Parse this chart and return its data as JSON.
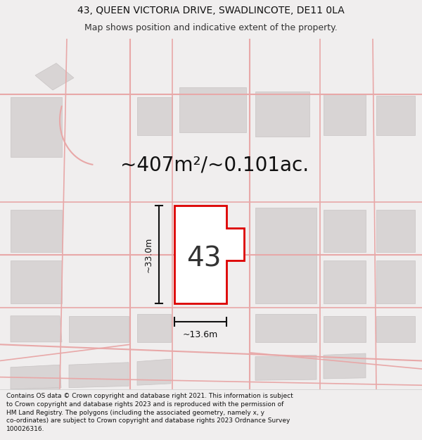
{
  "title_line1": "43, QUEEN VICTORIA DRIVE, SWADLINCOTE, DE11 0LA",
  "title_line2": "Map shows position and indicative extent of the property.",
  "area_label": "~407m²/~0.101ac.",
  "property_number": "43",
  "dim_height": "~33.0m",
  "dim_width": "~13.6m",
  "footer_text": "Contains OS data © Crown copyright and database right 2021. This information is subject to Crown copyright and database rights 2023 and is reproduced with the permission of HM Land Registry. The polygons (including the associated geometry, namely x, y co-ordinates) are subject to Crown copyright and database rights 2023 Ordnance Survey 100026316.",
  "bg_color": "#f0eeee",
  "map_bg": "#eeeaea",
  "plot_fill": "#ffffff",
  "plot_stroke": "#dd0000",
  "building_fill": "#d8d4d4",
  "building_edge": "#c8c4c4",
  "road_color": "#e8a8a8",
  "title_fontsize": 10,
  "subtitle_fontsize": 9,
  "area_fontsize": 20,
  "number_fontsize": 28,
  "dim_fontsize": 9,
  "footer_fontsize": 6.5
}
